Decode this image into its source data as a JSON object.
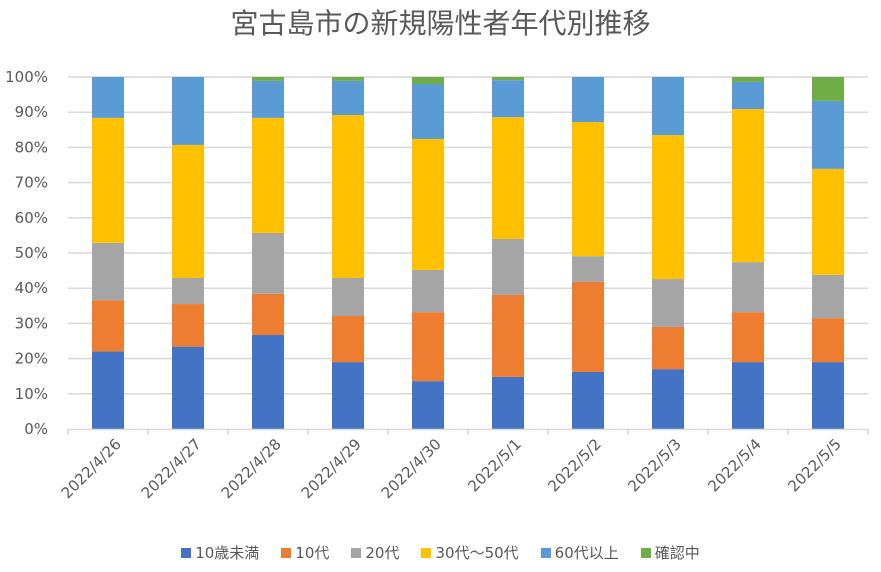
{
  "chart_data": {
    "type": "bar",
    "stacked": "percent",
    "title": "宮古島市の新規陽性者年代別推移",
    "xlabel": "",
    "ylabel": "",
    "ylim": [
      0,
      100
    ],
    "yticks": [
      "0%",
      "10%",
      "20%",
      "30%",
      "40%",
      "50%",
      "60%",
      "70%",
      "80%",
      "90%",
      "100%"
    ],
    "grid": true,
    "legend_position": "bottom",
    "categories": [
      "2022/4/26",
      "2022/4/27",
      "2022/4/28",
      "2022/4/29",
      "2022/4/30",
      "2022/5/1",
      "2022/5/2",
      "2022/5/3",
      "2022/5/4",
      "2022/5/5"
    ],
    "series": [
      {
        "name": "10歳未満",
        "color": "#4472C4",
        "values": [
          22.0,
          23.4,
          26.7,
          19.0,
          13.6,
          14.8,
          16.2,
          17.0,
          19.0,
          19.0
        ]
      },
      {
        "name": "10代",
        "color": "#ED7D31",
        "values": [
          14.6,
          12.1,
          11.7,
          13.1,
          19.6,
          23.3,
          25.6,
          12.0,
          14.2,
          12.5
        ]
      },
      {
        "name": "20代",
        "color": "#A5A5A5",
        "values": [
          16.3,
          7.4,
          17.3,
          10.8,
          12.0,
          15.9,
          7.3,
          13.6,
          14.2,
          12.3
        ]
      },
      {
        "name": "30代～50代",
        "color": "#FFC000",
        "values": [
          35.5,
          37.8,
          32.7,
          46.3,
          37.2,
          34.6,
          38.1,
          40.9,
          43.5,
          30.1
        ]
      },
      {
        "name": "60代以上",
        "color": "#5B9BD5",
        "values": [
          11.6,
          19.3,
          10.5,
          9.7,
          15.6,
          10.5,
          12.8,
          16.5,
          7.7,
          19.3
        ]
      },
      {
        "name": "確認中",
        "color": "#70AD47",
        "values": [
          0,
          0,
          1.1,
          1.1,
          2.0,
          0.9,
          0,
          0,
          1.4,
          6.8
        ]
      }
    ]
  }
}
